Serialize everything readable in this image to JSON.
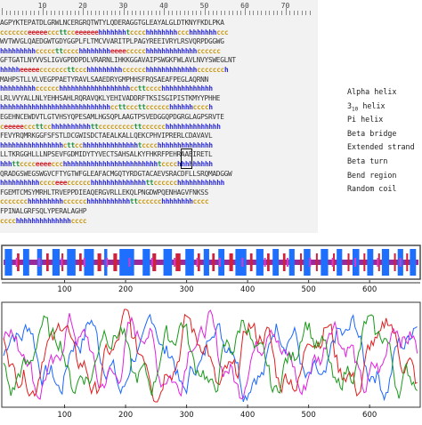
{
  "ruler": {
    "labels": [
      "10",
      "20",
      "30",
      "40",
      "50",
      "60",
      "70"
    ]
  },
  "sequence": {
    "lines": [
      {
        "aa": "AGPYKTEPATDLGRWLNCERGRQTWTYLQDERAGGTGLEAYALGLDTKNYFKDLPKA",
        "ss": "ccccccceeeeecccttcceeeeeehhhhhhhtcccchhhhhhhhccchhhhhhhccc"
      },
      {
        "aa": "WVTWVGLQAEDGWTGDYGGPLFLTMCVVARITPLPAGYREEIVRYLRSVQRPDGGWG",
        "ss": "hhhhhhhhhcccccttcccchhhhhhhheeeeccccchhhhhhhhhhhhhcccccc"
      },
      {
        "aa": "GFTGATLNYVVSLIGVGPDDPDLVRARNLIHKKGGAVAIPSWGKFWLAVLNVYSWEGLNT",
        "ss": "hhhhheeeeecccccccttccchhhhhhhhhcccccchhhhhhhhhhhhhccccccch"
      },
      {
        "aa": "MAHPSTLLVLVEGPPAETYRAVLSAAEDRYGMPHHSFRQSAEAFPEGLAQRNN",
        "ss": "hhhhhhhhhcccccchhhhhhhhhhhhhhhhhhccttcccchhhhhhhhhhhhh"
      },
      {
        "aa": "LRLVVYALLNLYEHHSAHLRQRAVQKLYEHIVADDRFTKSISGIPISTKMYYPHHE",
        "ss": "hhhhhhhhhhhhhhhhhhhhhhhhhhhhccttcccttcccccchhhhhhcccch"
      },
      {
        "aa": "EGEHNCEWDVTLGTVHSYQPESAMLHGSQPLAAGTPSVEDGGQPDGRGLAGPSRVTE",
        "ss": "ceeeeecccttcchhhhhhhhhhttcccccccccttcccccchhhhhhhhhhhhhh"
      },
      {
        "aa": "FEVYRQMRKGGFSFSTLDCGWISDCTAEALKALLQEKCPHVIPRERLCDAVAVL",
        "ss": "hhhhhhhhhhhhhhhhcttcchhhhhhhhhhhhhhtcccchhhhhhhhhhhhhh"
      },
      {
        "aa": "LLTKRGGHLLLNPSEVFGDMIDYTYVECTSAHSALKYFHKRFPEHRAAEIRETL",
        "ss": "hhhttcccceeeeccchhhhhhhhhhhhhhhhhhhhhhhhtcccchhhhhhhhh"
      },
      {
        "aa": "QRADGSWEGSWGVCFTYGTWFGLEAFACMGQTYRDGTACAEVSRACDFLLSRQMADGGW",
        "ss": "hhhhhhhhhhcccceeecccccchhhhhhhhhhhhhhttcccccchhhhhhhhhhhh"
      },
      {
        "aa": "FGEMTCMSYMRHLTRVEPPDIEAQERGVRLLEKQLPNGDWPQENHAGVFNKSS",
        "ss": "ccccccchhhhhhhhhcccccchhhhhhhhhhhttcccccchhhhhhhhcccc"
      },
      {
        "aa": "FPINALGRFSQLYPERALAGHP",
        "ss": "cccchhhhhhhhhhhhhhcccc"
      }
    ]
  },
  "legend": {
    "items": [
      {
        "name": "Alpha helix"
      },
      {
        "prefix": "3",
        "sub": "10",
        "rest": " helix"
      },
      {
        "name": "Pi helix"
      },
      {
        "name": "Beta bridge"
      },
      {
        "name": "Extended strand"
      },
      {
        "name": "Beta turn"
      },
      {
        "name": "Bend region"
      },
      {
        "name": "Random coil"
      }
    ]
  },
  "ss_track": {
    "axis_labels": [
      "100",
      "200",
      "300",
      "400",
      "500",
      "600"
    ],
    "length": 680,
    "colors": {
      "helix": "#1f6fff",
      "strand": "#d0203a",
      "turn": "#d838c8",
      "coil": "#9a2a9a",
      "frame": "#4a4a4a"
    },
    "helices": [
      [
        2,
        14
      ],
      [
        32,
        42
      ],
      [
        55,
        63
      ],
      [
        80,
        92
      ],
      [
        104,
        118
      ],
      [
        132,
        148
      ],
      [
        165,
        170
      ],
      [
        190,
        214
      ],
      [
        228,
        240
      ],
      [
        262,
        276
      ],
      [
        298,
        312
      ],
      [
        328,
        337
      ],
      [
        352,
        362
      ],
      [
        380,
        398
      ],
      [
        414,
        426
      ],
      [
        441,
        451
      ],
      [
        468,
        477
      ],
      [
        492,
        503
      ],
      [
        520,
        532
      ],
      [
        546,
        555
      ],
      [
        572,
        583
      ],
      [
        596,
        606
      ],
      [
        620,
        632
      ],
      [
        646,
        655
      ],
      [
        666,
        676
      ]
    ],
    "strands": [
      [
        22,
        26
      ],
      [
        70,
        74
      ],
      [
        95,
        98
      ],
      [
        124,
        128
      ],
      [
        154,
        160
      ],
      [
        180,
        186
      ],
      [
        244,
        250
      ],
      [
        282,
        290
      ],
      [
        318,
        322
      ],
      [
        342,
        346
      ],
      [
        370,
        376
      ],
      [
        404,
        408
      ],
      [
        432,
        436
      ],
      [
        458,
        462
      ],
      [
        486,
        488
      ],
      [
        512,
        514
      ],
      [
        540,
        542
      ],
      [
        564,
        566
      ],
      [
        590,
        592
      ],
      [
        614,
        616
      ],
      [
        640,
        642
      ],
      [
        660,
        662
      ]
    ]
  },
  "score_plot": {
    "axis_labels": [
      "100",
      "200",
      "300",
      "400",
      "500",
      "600"
    ],
    "series_colors": [
      "#1a66ff",
      "#e020e0",
      "#e01d1d",
      "#1a9a1a"
    ]
  }
}
